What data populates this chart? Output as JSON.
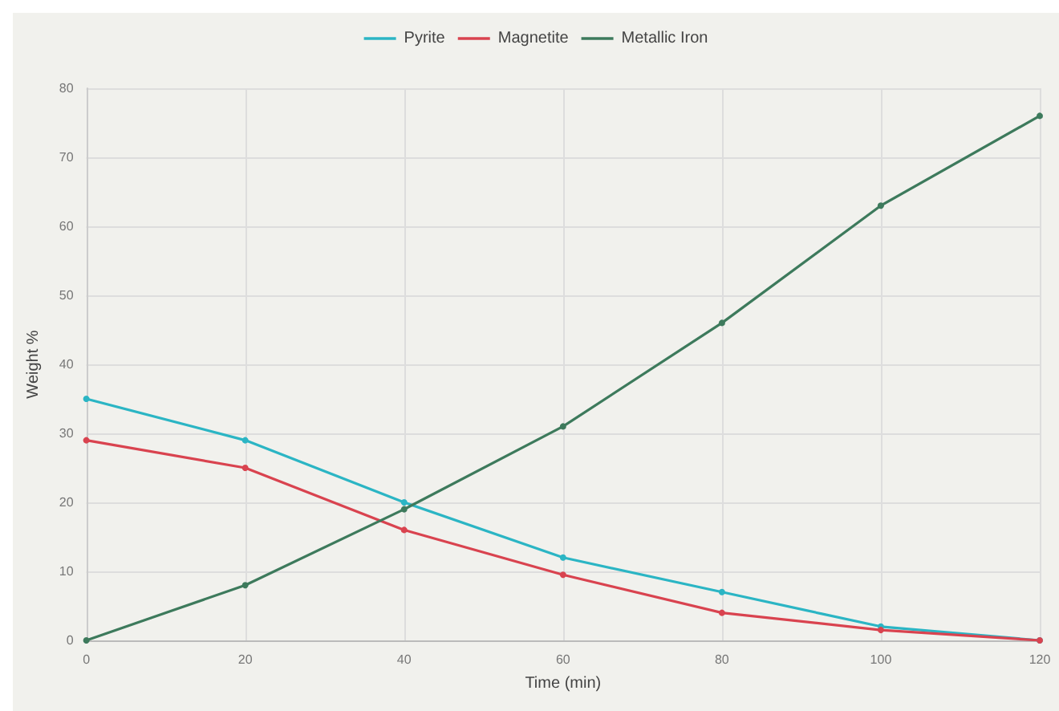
{
  "chart_data": {
    "type": "line",
    "xlabel": "Time (min)",
    "ylabel": "Weight %",
    "x": [
      0,
      20,
      40,
      60,
      80,
      100,
      120
    ],
    "series": [
      {
        "name": "Pyrite",
        "color": "#2bb5c4",
        "values": [
          35,
          29,
          20,
          12,
          7,
          2,
          0
        ]
      },
      {
        "name": "Magnetite",
        "color": "#d9434f",
        "values": [
          29,
          25,
          16,
          9.5,
          4,
          1.5,
          0
        ]
      },
      {
        "name": "Metallic Iron",
        "color": "#3d7a5c",
        "values": [
          0,
          8,
          19,
          31,
          46,
          63,
          76
        ]
      }
    ],
    "xlim": [
      0,
      120
    ],
    "xticks": [
      0,
      20,
      40,
      60,
      80,
      100,
      120
    ],
    "ylim": [
      0,
      80
    ],
    "yticks": [
      0,
      10,
      20,
      30,
      40,
      50,
      60,
      70,
      80
    ],
    "grid": true,
    "legend": "top",
    "marker": "circle",
    "line_style": "solid"
  }
}
